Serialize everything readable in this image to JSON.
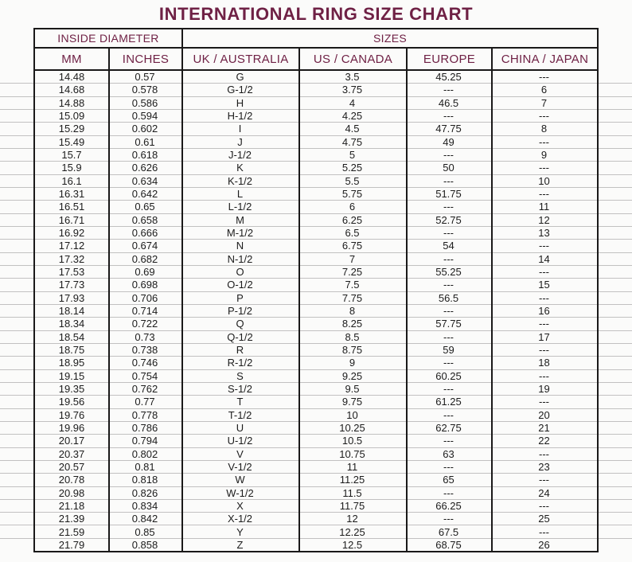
{
  "title": "INTERNATIONAL RING SIZE CHART",
  "colors": {
    "accent_maroon": "#6f2145",
    "border_black": "#1a1919",
    "row_line_gray": "#c2c1c1",
    "data_text": "#1c1c1c",
    "background": "#fbfbfa"
  },
  "table": {
    "group_headers": [
      {
        "label": "INSIDE DIAMETER"
      },
      {
        "label": "SIZES"
      }
    ],
    "column_headers": [
      "MM",
      "INCHES",
      "UK / AUSTRALIA",
      "US / CANADA",
      "EUROPE",
      "CHINA / JAPAN"
    ],
    "rows": [
      {
        "mm": "14.48",
        "inches": "0.57",
        "uk": "G",
        "us": "3.5",
        "europe": "45.25",
        "china": "---"
      },
      {
        "mm": "14.68",
        "inches": "0.578",
        "uk": "G-1/2",
        "us": "3.75",
        "europe": "---",
        "china": "6"
      },
      {
        "mm": "14.88",
        "inches": "0.586",
        "uk": "H",
        "us": "4",
        "europe": "46.5",
        "china": "7"
      },
      {
        "mm": "15.09",
        "inches": "0.594",
        "uk": "H-1/2",
        "us": "4.25",
        "europe": "---",
        "china": "---"
      },
      {
        "mm": "15.29",
        "inches": "0.602",
        "uk": "I",
        "us": "4.5",
        "europe": "47.75",
        "china": "8"
      },
      {
        "mm": "15.49",
        "inches": "0.61",
        "uk": "J",
        "us": "4.75",
        "europe": "49",
        "china": "---"
      },
      {
        "mm": "15.7",
        "inches": "0.618",
        "uk": "J-1/2",
        "us": "5",
        "europe": "---",
        "china": "9"
      },
      {
        "mm": "15.9",
        "inches": "0.626",
        "uk": "K",
        "us": "5.25",
        "europe": "50",
        "china": "---"
      },
      {
        "mm": "16.1",
        "inches": "0.634",
        "uk": "K-1/2",
        "us": "5.5",
        "europe": "---",
        "china": "10"
      },
      {
        "mm": "16.31",
        "inches": "0.642",
        "uk": "L",
        "us": "5.75",
        "europe": "51.75",
        "china": "---"
      },
      {
        "mm": "16.51",
        "inches": "0.65",
        "uk": "L-1/2",
        "us": "6",
        "europe": "---",
        "china": "11"
      },
      {
        "mm": "16.71",
        "inches": "0.658",
        "uk": "M",
        "us": "6.25",
        "europe": "52.75",
        "china": "12"
      },
      {
        "mm": "16.92",
        "inches": "0.666",
        "uk": "M-1/2",
        "us": "6.5",
        "europe": "---",
        "china": "13"
      },
      {
        "mm": "17.12",
        "inches": "0.674",
        "uk": "N",
        "us": "6.75",
        "europe": "54",
        "china": "---"
      },
      {
        "mm": "17.32",
        "inches": "0.682",
        "uk": "N-1/2",
        "us": "7",
        "europe": "---",
        "china": "14"
      },
      {
        "mm": "17.53",
        "inches": "0.69",
        "uk": "O",
        "us": "7.25",
        "europe": "55.25",
        "china": "---"
      },
      {
        "mm": "17.73",
        "inches": "0.698",
        "uk": "O-1/2",
        "us": "7.5",
        "europe": "---",
        "china": "15"
      },
      {
        "mm": "17.93",
        "inches": "0.706",
        "uk": "P",
        "us": "7.75",
        "europe": "56.5",
        "china": "---"
      },
      {
        "mm": "18.14",
        "inches": "0.714",
        "uk": "P-1/2",
        "us": "8",
        "europe": "---",
        "china": "16"
      },
      {
        "mm": "18.34",
        "inches": "0.722",
        "uk": "Q",
        "us": "8.25",
        "europe": "57.75",
        "china": "---"
      },
      {
        "mm": "18.54",
        "inches": "0.73",
        "uk": "Q-1/2",
        "us": "8.5",
        "europe": "---",
        "china": "17"
      },
      {
        "mm": "18.75",
        "inches": "0.738",
        "uk": "R",
        "us": "8.75",
        "europe": "59",
        "china": "---"
      },
      {
        "mm": "18.95",
        "inches": "0.746",
        "uk": "R-1/2",
        "us": "9",
        "europe": "---",
        "china": "18"
      },
      {
        "mm": "19.15",
        "inches": "0.754",
        "uk": "S",
        "us": "9.25",
        "europe": "60.25",
        "china": "---"
      },
      {
        "mm": "19.35",
        "inches": "0.762",
        "uk": "S-1/2",
        "us": "9.5",
        "europe": "---",
        "china": "19"
      },
      {
        "mm": "19.56",
        "inches": "0.77",
        "uk": "T",
        "us": "9.75",
        "europe": "61.25",
        "china": "---"
      },
      {
        "mm": "19.76",
        "inches": "0.778",
        "uk": "T-1/2",
        "us": "10",
        "europe": "---",
        "china": "20"
      },
      {
        "mm": "19.96",
        "inches": "0.786",
        "uk": "U",
        "us": "10.25",
        "europe": "62.75",
        "china": "21"
      },
      {
        "mm": "20.17",
        "inches": "0.794",
        "uk": "U-1/2",
        "us": "10.5",
        "europe": "---",
        "china": "22"
      },
      {
        "mm": "20.37",
        "inches": "0.802",
        "uk": "V",
        "us": "10.75",
        "europe": "63",
        "china": "---"
      },
      {
        "mm": "20.57",
        "inches": "0.81",
        "uk": "V-1/2",
        "us": "11",
        "europe": "---",
        "china": "23"
      },
      {
        "mm": "20.78",
        "inches": "0.818",
        "uk": "W",
        "us": "11.25",
        "europe": "65",
        "china": "---"
      },
      {
        "mm": "20.98",
        "inches": "0.826",
        "uk": "W-1/2",
        "us": "11.5",
        "europe": "---",
        "china": "24"
      },
      {
        "mm": "21.18",
        "inches": "0.834",
        "uk": "X",
        "us": "11.75",
        "europe": "66.25",
        "china": "---"
      },
      {
        "mm": "21.39",
        "inches": "0.842",
        "uk": "X-1/2",
        "us": "12",
        "europe": "---",
        "china": "25"
      },
      {
        "mm": "21.59",
        "inches": "0.85",
        "uk": "Y",
        "us": "12.25",
        "europe": "67.5",
        "china": "---"
      },
      {
        "mm": "21.79",
        "inches": "0.858",
        "uk": "Z",
        "us": "12.5",
        "europe": "68.75",
        "china": "26"
      }
    ]
  }
}
